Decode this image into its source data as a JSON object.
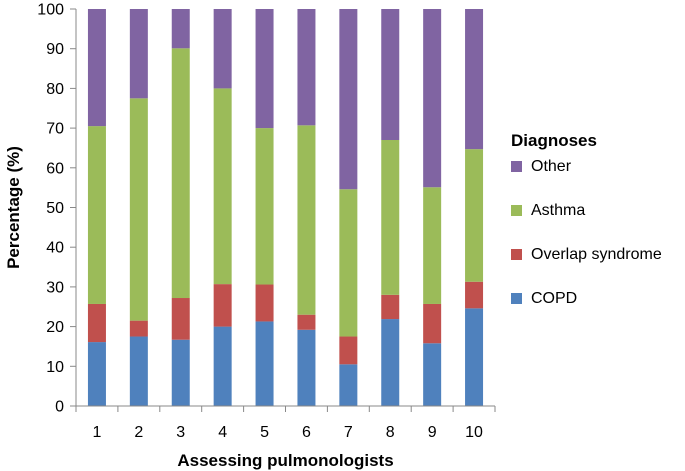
{
  "chart_data": {
    "type": "bar",
    "stacked": true,
    "title": "",
    "xlabel": "Assessing pulmonologists",
    "ylabel": "Percentage (%)",
    "ylim": [
      0,
      100
    ],
    "yticks": [
      0,
      10,
      20,
      30,
      40,
      50,
      60,
      70,
      80,
      90,
      100
    ],
    "categories": [
      "1",
      "2",
      "3",
      "4",
      "5",
      "6",
      "7",
      "8",
      "9",
      "10"
    ],
    "legend_title": "Diagnoses",
    "legend_position": "right",
    "series": [
      {
        "name": "COPD",
        "color": "#4F81BD",
        "values": [
          16.1,
          17.5,
          16.7,
          20.0,
          21.3,
          19.2,
          10.5,
          21.9,
          15.8,
          24.6
        ]
      },
      {
        "name": "Overlap syndrome",
        "color": "#C0504D",
        "values": [
          9.6,
          4.0,
          10.5,
          10.7,
          9.3,
          3.8,
          7.0,
          6.1,
          9.9,
          6.7
        ]
      },
      {
        "name": "Asthma",
        "color": "#9BBB59",
        "values": [
          44.8,
          56.0,
          62.9,
          49.3,
          39.4,
          47.7,
          37.1,
          39.0,
          29.4,
          33.4
        ]
      },
      {
        "name": "Other",
        "color": "#8064A2",
        "values": [
          29.5,
          22.5,
          9.9,
          20.0,
          30.0,
          29.3,
          45.4,
          33.0,
          44.9,
          35.3
        ]
      }
    ],
    "legend_order": [
      "Other",
      "Asthma",
      "Overlap syndrome",
      "COPD"
    ]
  }
}
